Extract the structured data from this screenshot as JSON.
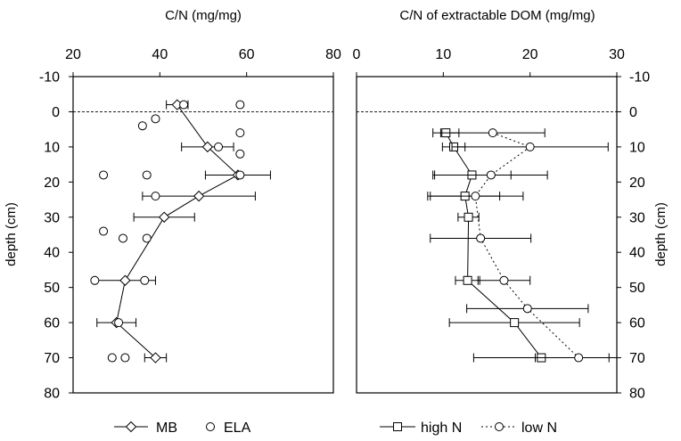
{
  "chart_data": [
    {
      "type": "line",
      "title": "C/N (mg/mg)",
      "xlim": [
        20,
        80
      ],
      "xticks": [
        "20",
        "40",
        "60",
        "80"
      ],
      "ylim": [
        -10,
        80
      ],
      "yticks": [
        "-10",
        "0",
        "10",
        "20",
        "30",
        "40",
        "50",
        "60",
        "70",
        "80"
      ],
      "ylabel": "depth (cm)",
      "reference_line_depth": 0,
      "series": [
        {
          "name": "MB",
          "marker": "diamond",
          "line": "solid",
          "points": [
            {
              "y": -2,
              "x": 44,
              "err": 2.5
            },
            {
              "y": 10,
              "x": 51,
              "err": 6
            },
            {
              "y": 18,
              "x": 58,
              "err": 7.5
            },
            {
              "y": 24,
              "x": 49,
              "err": 13
            },
            {
              "y": 30,
              "x": 41,
              "err": 7
            },
            {
              "y": 48,
              "x": 32,
              "err": 7
            },
            {
              "y": 60,
              "x": 30,
              "err": 4.5
            },
            {
              "y": 70,
              "x": 39,
              "err": 2.5
            }
          ]
        },
        {
          "name": "ELA",
          "marker": "circle",
          "line": "none",
          "points": [
            {
              "y": -2,
              "x": 45.5
            },
            {
              "y": -2,
              "x": 58.5
            },
            {
              "y": 2,
              "x": 39
            },
            {
              "y": 4,
              "x": 36
            },
            {
              "y": 6,
              "x": 58.5
            },
            {
              "y": 10,
              "x": 53.5
            },
            {
              "y": 12,
              "x": 58.5
            },
            {
              "y": 18,
              "x": 27
            },
            {
              "y": 18,
              "x": 37
            },
            {
              "y": 18,
              "x": 58.5
            },
            {
              "y": 24,
              "x": 39
            },
            {
              "y": 34,
              "x": 27
            },
            {
              "y": 36,
              "x": 31.5
            },
            {
              "y": 36,
              "x": 37
            },
            {
              "y": 48,
              "x": 25
            },
            {
              "y": 48,
              "x": 36.5
            },
            {
              "y": 60,
              "x": 30.5
            },
            {
              "y": 70,
              "x": 29
            },
            {
              "y": 70,
              "x": 32
            }
          ]
        }
      ]
    },
    {
      "type": "line",
      "title": "C/N of extractable DOM (mg/mg)",
      "xlim": [
        0,
        30
      ],
      "xticks": [
        "0",
        "10",
        "20",
        "30"
      ],
      "ylim": [
        -10,
        80
      ],
      "yticks": [
        "-10",
        "0",
        "10",
        "20",
        "30",
        "40",
        "50",
        "60",
        "70",
        "80"
      ],
      "ylabel": "depth (cm)",
      "reference_line_depth": 0,
      "series": [
        {
          "name": "high N",
          "marker": "square",
          "line": "solid",
          "points": [
            {
              "y": 6,
              "x": 10.3,
              "err": 1.5
            },
            {
              "y": 10,
              "x": 11.2,
              "err": 1.3
            },
            {
              "y": 18,
              "x": 13.3,
              "err": 4.5
            },
            {
              "y": 24,
              "x": 12.5,
              "err": 4
            },
            {
              "y": 30,
              "x": 12.9,
              "err": 1.2
            },
            {
              "y": 48,
              "x": 12.8,
              "err": 1.4
            },
            {
              "y": 60,
              "x": 18.2,
              "err": 7.5
            },
            {
              "y": 70,
              "x": 21.3,
              "err": 7.8
            }
          ]
        },
        {
          "name": "low N",
          "marker": "circle",
          "line": "dotted",
          "points": [
            {
              "y": 6,
              "x": 15.7,
              "err": 6
            },
            {
              "y": 10,
              "x": 20,
              "err": 9
            },
            {
              "y": 18,
              "x": 15.5,
              "err": 6.5
            },
            {
              "y": 24,
              "x": 13.7,
              "err": 5.5
            },
            {
              "y": 36,
              "x": 14.3,
              "err": 5.8
            },
            {
              "y": 48,
              "x": 17,
              "err": 3
            },
            {
              "y": 56,
              "x": 19.7,
              "err": 7
            },
            {
              "y": 70,
              "x": 25.6,
              "err": 5
            }
          ]
        }
      ]
    }
  ],
  "legend_left": [
    "MB",
    "ELA"
  ],
  "legend_right": [
    "high N",
    "low N"
  ]
}
